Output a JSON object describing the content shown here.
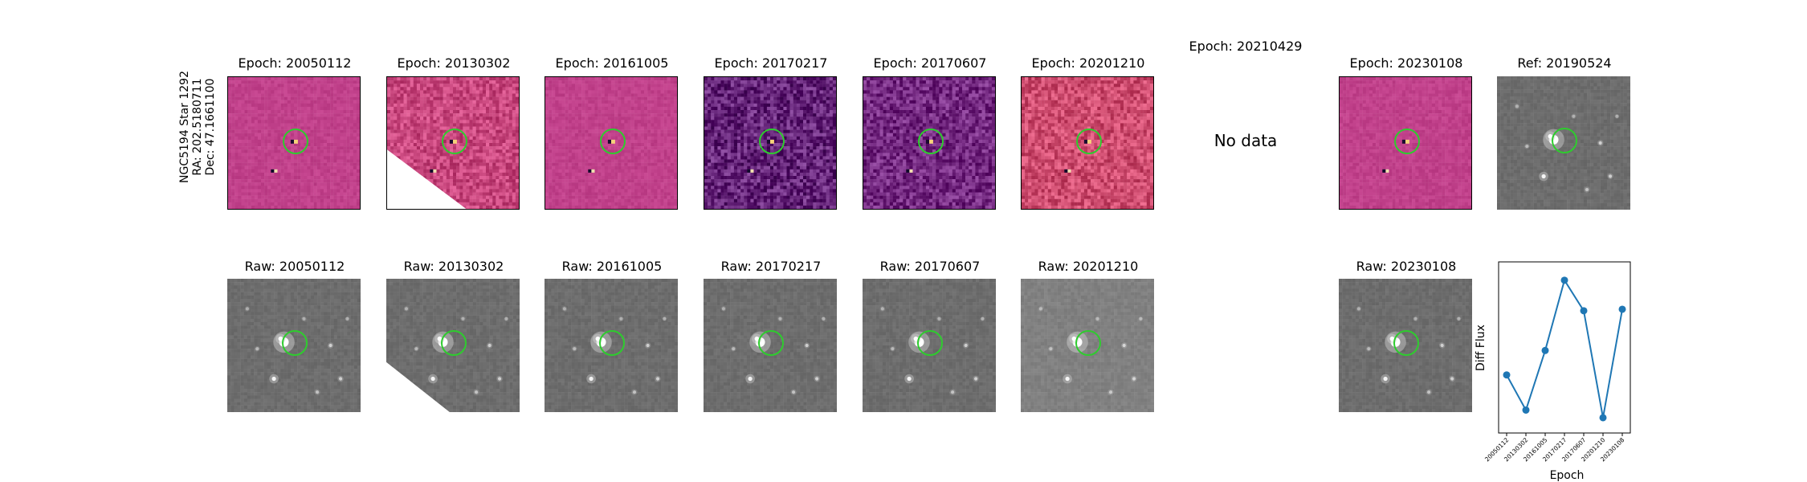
{
  "star_info": {
    "name": "NGC5194 Star 1292",
    "ra": "RA: 202.5180711",
    "dec": "Dec: 47.1661100"
  },
  "diff_panels": [
    {
      "title": "Epoch: 20050112",
      "style": "magenta-flat",
      "has_data": true
    },
    {
      "title": "Epoch: 20130302",
      "style": "magenta-noisy",
      "has_data": true
    },
    {
      "title": "Epoch: 20161005",
      "style": "magenta-flat",
      "has_data": true
    },
    {
      "title": "Epoch: 20170217",
      "style": "purple-noisy",
      "has_data": true
    },
    {
      "title": "Epoch: 20170607",
      "style": "purple-noisy",
      "has_data": true
    },
    {
      "title": "Epoch: 20201210",
      "style": "red-noisy",
      "has_data": true
    },
    {
      "title": "Epoch: 20210429",
      "style": "none",
      "has_data": false,
      "nodata_text": "No data"
    },
    {
      "title": "Epoch: 20230108",
      "style": "magenta-flat",
      "has_data": true
    }
  ],
  "ref_panel": {
    "title": "Ref: 20190524"
  },
  "raw_panels": [
    {
      "title": "Raw: 20050112"
    },
    {
      "title": "Raw: 20130302"
    },
    {
      "title": "Raw: 20161005"
    },
    {
      "title": "Raw: 20170217"
    },
    {
      "title": "Raw: 20170607"
    },
    {
      "title": "Raw: 20201210"
    },
    {
      "title": "Raw: 20230108"
    }
  ],
  "colors": {
    "ring": "#2ecc2e",
    "series": "#1f77b4",
    "magenta": "#c0408a",
    "purple": "#5a1f7a",
    "raw_gray": "#6a6a6a"
  },
  "chart_data": {
    "type": "line",
    "xlabel": "Epoch",
    "ylabel": "Diff Flux",
    "categories": [
      "20050112",
      "20130302",
      "20161005",
      "20170217",
      "20170607",
      "20201210",
      "20230108"
    ],
    "values": [
      0.38,
      0.15,
      0.54,
      1.0,
      0.8,
      0.1,
      0.81
    ],
    "ylim": [
      0.0,
      1.12
    ],
    "yticks_shown": false,
    "grid": false
  }
}
